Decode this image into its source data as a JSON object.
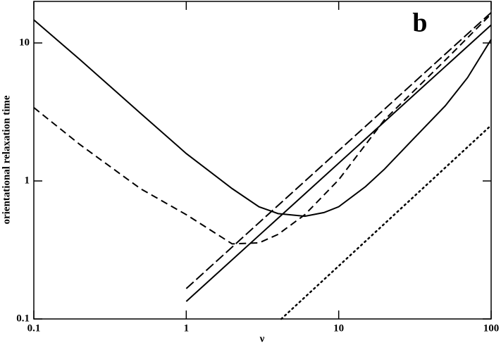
{
  "chart_data": {
    "type": "line",
    "xlabel": "ν",
    "ylabel": "orientational relaxation time",
    "annotation": "b",
    "xscale": "log",
    "yscale": "log",
    "xlim": [
      0.1,
      100
    ],
    "ylim": [
      0.1,
      20
    ],
    "xticks": [
      0.1,
      1,
      10,
      100
    ],
    "yticks": [
      0.1,
      1,
      10
    ],
    "series": [
      {
        "color": "#000000",
        "style": "solid",
        "x": [
          0.1,
          0.2,
          0.5,
          1,
          2,
          3,
          4,
          6,
          8,
          10,
          15,
          20,
          30,
          50,
          70,
          100
        ],
        "values": [
          14.7,
          7.6,
          3.1,
          1.58,
          0.88,
          0.65,
          0.58,
          0.555,
          0.59,
          0.65,
          0.91,
          1.22,
          1.95,
          3.5,
          5.6,
          10.6
        ]
      },
      {
        "color": "#000000",
        "style": "dashed",
        "x": [
          0.1,
          0.2,
          0.5,
          1,
          2,
          3,
          4,
          6,
          10,
          20,
          50,
          100
        ],
        "values": [
          3.4,
          1.84,
          0.88,
          0.57,
          0.35,
          0.356,
          0.41,
          0.57,
          1.02,
          2.78,
          7.5,
          16.2
        ]
      },
      {
        "color": "#000000",
        "style": "long-dashed",
        "x": [
          1,
          100
        ],
        "values": [
          0.166,
          16.6
        ]
      },
      {
        "color": "#000000",
        "style": "solid",
        "x": [
          1,
          100
        ],
        "values": [
          0.134,
          13.5
        ]
      },
      {
        "color": "#000000",
        "style": "dotted",
        "x": [
          4.2,
          100
        ],
        "values": [
          0.1,
          2.53
        ]
      }
    ]
  }
}
